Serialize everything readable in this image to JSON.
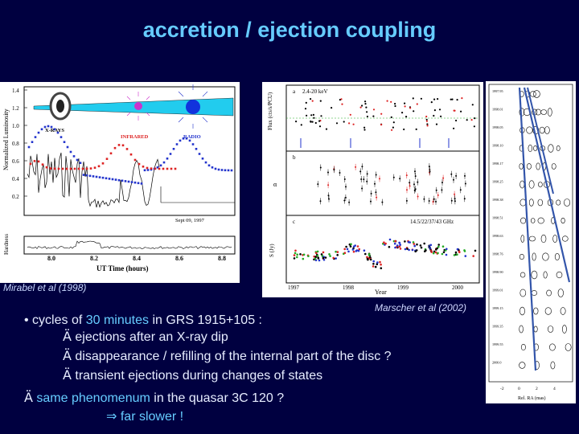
{
  "slide": {
    "title": "accretion / ejection coupling",
    "captions": {
      "mirabel": "Mirabel et al (1998)",
      "marscher": "Marscher et al (2002)"
    },
    "bullets": {
      "b1_prefix": "• cycles of ",
      "b1_hl": "30 minutes",
      "b1_suffix": " in GRS 1915+105 :",
      "b2": "ejections after an X-ray dip",
      "b3": "disappearance / refilling of the internal part of the disc ?",
      "b4": "transient ejections during changes of states",
      "b5_hl1": "same phenomenum",
      "b5_mid": " in the quasar 3C 120 ?",
      "b6": "far slower !",
      "arrow_glyph": "Ä",
      "implies_glyph": "⇒"
    }
  },
  "fig_mirabel": {
    "y_label": "Normalized Luminosity",
    "y_label2": "Hardness",
    "x_label": "UT Time (hours)",
    "x_ticks": [
      "8.0",
      "8.2",
      "8.4",
      "8.6",
      "8.8"
    ],
    "y_ticks": [
      "1.4",
      "1.2",
      "1.0",
      "0.8",
      "0.6",
      "0.4",
      "0.2"
    ],
    "labels": {
      "xrays": "X-RAYS",
      "infrared": "INFRARED",
      "radio": "RADIO",
      "date": "Sept 09, 1997"
    },
    "colors": {
      "radio": "#2233cc",
      "infrared": "#dd2222",
      "xray": "#000000",
      "beam": "#22ccee"
    }
  },
  "fig_marscher": {
    "year_ticks": [
      "1997",
      "1998",
      "1999",
      "2000"
    ],
    "x_label": "Year",
    "panel_labels": [
      "a",
      "b",
      "c"
    ],
    "top_note": "2.4-20 keV",
    "freq_note": "14.5/22/37/43 GHz",
    "y_labels": [
      "Flux (cts/s/PCU)",
      "α",
      "S (Jy)"
    ],
    "colors": {
      "green": "#22aa22",
      "red": "#dd2222",
      "blue": "#2233cc",
      "black": "#000000"
    }
  },
  "fig_maps": {
    "epochs": [
      "1997.95",
      "1998.01",
      "1998.05",
      "1998.10",
      "1998.17",
      "1998.25",
      "1998.38",
      "1998.51",
      "1998.63",
      "1998.76",
      "1998.90",
      "1999.01",
      "1999.15",
      "1999.35",
      "1999.55",
      "2000.0"
    ],
    "x_ticks": [
      "-2",
      "0",
      "2",
      "4"
    ],
    "x_label": "Rel. RA (mas)"
  }
}
